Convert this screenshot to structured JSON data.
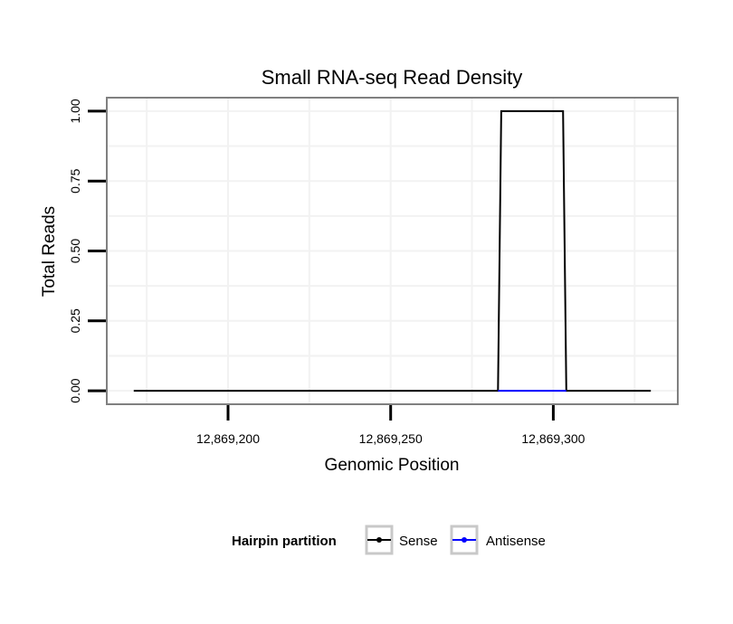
{
  "chart_data": {
    "type": "line",
    "title": "Small RNA-seq Read Density",
    "xlabel": "Genomic Position",
    "ylabel": "Total Reads",
    "xlim": [
      12869163,
      12869338
    ],
    "ylim": [
      -0.045,
      1.045
    ],
    "x_ticks": [
      12869200,
      12869250,
      12869300
    ],
    "x_tick_labels": [
      "12,869,200",
      "12,869,250",
      "12,869,300"
    ],
    "y_ticks": [
      0,
      0.25,
      0.5,
      0.75,
      1.0
    ],
    "y_tick_labels": [
      "0.00",
      "0.25",
      "0.50",
      "0.75",
      "1.00"
    ],
    "grid": true,
    "legend": {
      "title": "Hairpin partition",
      "position": "bottom"
    },
    "series": [
      {
        "name": "Sense",
        "color": "#000000",
        "points": [
          [
            12869171,
            0
          ],
          [
            12869283,
            0
          ],
          [
            12869284,
            1
          ],
          [
            12869303,
            1
          ],
          [
            12869304,
            0
          ],
          [
            12869330,
            0
          ]
        ]
      },
      {
        "name": "Antisense",
        "color": "#0000ff",
        "points": [
          [
            12869283,
            0
          ],
          [
            12869304,
            0
          ]
        ]
      }
    ]
  }
}
